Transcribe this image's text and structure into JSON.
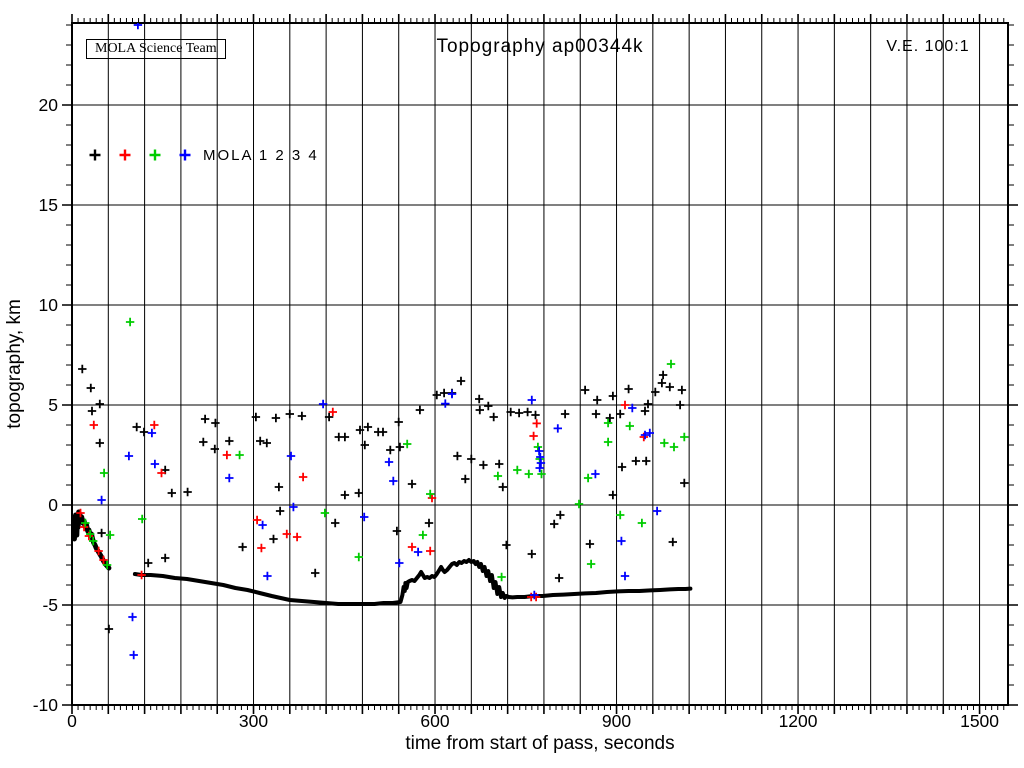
{
  "chart_data": {
    "type": "scatter",
    "title": "Topography ap00344k",
    "box_label": "MOLA Science Team",
    "corner_label": "V.E. 100:1",
    "xlabel": "time from start of pass, seconds",
    "ylabel": "topography, km",
    "xlim": [
      0,
      1547
    ],
    "ylim": [
      -10,
      24.1
    ],
    "x_tick_labels": [
      0,
      300,
      600,
      900,
      1200,
      1500
    ],
    "y_tick_labels": [
      -10,
      -5,
      0,
      5,
      10,
      15,
      20
    ],
    "x_grid_step": 60,
    "x_minor_step": 10,
    "y_grid_step": 5,
    "y_minor_step": 1,
    "grid": true,
    "frame_color": "#000000",
    "legend": {
      "label": "MOLA 1 2 3 4",
      "entries": [
        {
          "name": "MOLA 1",
          "color": "#000000"
        },
        {
          "name": "MOLA 2",
          "color": "#ff0000"
        },
        {
          "name": "MOLA 3",
          "color": "#00cc00"
        },
        {
          "name": "MOLA 4",
          "color": "#0000ff"
        }
      ]
    },
    "track_start": {
      "name": "ground-track-initial-descent",
      "color": "#000000",
      "points": [
        [
          3,
          -1.2
        ],
        [
          4,
          -0.6
        ],
        [
          4,
          -1.7
        ],
        [
          5,
          -1.1
        ],
        [
          6,
          -0.5
        ],
        [
          6,
          -1.4
        ],
        [
          7,
          -0.8
        ],
        [
          8,
          -1.5
        ],
        [
          9,
          -0.55
        ],
        [
          10,
          -1.1
        ],
        [
          11,
          -0.35
        ],
        [
          12,
          -0.8
        ],
        [
          13,
          -0.5
        ],
        [
          14,
          -0.75
        ],
        [
          16,
          -0.6
        ],
        [
          18,
          -0.9
        ],
        [
          20,
          -0.8
        ],
        [
          22,
          -1.1
        ],
        [
          24,
          -1.0
        ],
        [
          26,
          -1.3
        ],
        [
          28,
          -1.25
        ],
        [
          30,
          -1.5
        ],
        [
          32,
          -1.45
        ],
        [
          34,
          -1.7
        ],
        [
          36,
          -1.9
        ],
        [
          38,
          -2.0
        ],
        [
          40,
          -2.15
        ],
        [
          43,
          -2.3
        ],
        [
          46,
          -2.45
        ],
        [
          49,
          -2.6
        ],
        [
          52,
          -2.8
        ],
        [
          55,
          -2.95
        ],
        [
          58,
          -3.05
        ],
        [
          61,
          -3.15
        ]
      ]
    },
    "track": {
      "name": "ground-track-profile",
      "color": "#000000",
      "points": [
        [
          104,
          -3.45
        ],
        [
          115,
          -3.5
        ],
        [
          130,
          -3.5
        ],
        [
          150,
          -3.55
        ],
        [
          170,
          -3.65
        ],
        [
          190,
          -3.7
        ],
        [
          210,
          -3.8
        ],
        [
          230,
          -3.9
        ],
        [
          250,
          -4.0
        ],
        [
          270,
          -4.15
        ],
        [
          290,
          -4.25
        ],
        [
          310,
          -4.4
        ],
        [
          330,
          -4.55
        ],
        [
          345,
          -4.65
        ],
        [
          360,
          -4.75
        ],
        [
          380,
          -4.8
        ],
        [
          400,
          -4.85
        ],
        [
          420,
          -4.9
        ],
        [
          440,
          -4.95
        ],
        [
          460,
          -4.95
        ],
        [
          480,
          -4.95
        ],
        [
          500,
          -4.95
        ],
        [
          515,
          -4.9
        ],
        [
          530,
          -4.9
        ],
        [
          543,
          -4.85
        ],
        [
          546,
          -4.5
        ],
        [
          548,
          -4.1
        ],
        [
          550,
          -4.3
        ],
        [
          551,
          -3.9
        ],
        [
          553,
          -4.15
        ],
        [
          555,
          -3.85
        ],
        [
          558,
          -3.8
        ],
        [
          562,
          -3.75
        ],
        [
          566,
          -3.8
        ],
        [
          570,
          -3.65
        ],
        [
          574,
          -3.5
        ],
        [
          577,
          -3.35
        ],
        [
          580,
          -3.5
        ],
        [
          583,
          -3.65
        ],
        [
          587,
          -3.6
        ],
        [
          591,
          -3.65
        ],
        [
          595,
          -3.55
        ],
        [
          599,
          -3.6
        ],
        [
          603,
          -3.45
        ],
        [
          607,
          -3.25
        ],
        [
          610,
          -3.1
        ],
        [
          613,
          -3.25
        ],
        [
          616,
          -3.35
        ],
        [
          620,
          -3.25
        ],
        [
          624,
          -3.1
        ],
        [
          628,
          -2.95
        ],
        [
          632,
          -2.9
        ],
        [
          636,
          -3.0
        ],
        [
          640,
          -2.85
        ],
        [
          644,
          -2.9
        ],
        [
          648,
          -2.8
        ],
        [
          652,
          -2.85
        ],
        [
          656,
          -2.75
        ],
        [
          660,
          -2.85
        ],
        [
          664,
          -2.8
        ],
        [
          667,
          -2.95
        ],
        [
          670,
          -2.85
        ],
        [
          673,
          -3.1
        ],
        [
          676,
          -2.95
        ],
        [
          679,
          -3.3
        ],
        [
          682,
          -3.1
        ],
        [
          685,
          -3.55
        ],
        [
          688,
          -3.3
        ],
        [
          691,
          -3.8
        ],
        [
          694,
          -3.5
        ],
        [
          697,
          -4.15
        ],
        [
          700,
          -3.85
        ],
        [
          703,
          -4.45
        ],
        [
          706,
          -4.1
        ],
        [
          709,
          -4.6
        ],
        [
          712,
          -4.4
        ],
        [
          715,
          -4.65
        ],
        [
          718,
          -4.55
        ],
        [
          722,
          -4.6
        ],
        [
          728,
          -4.62
        ],
        [
          736,
          -4.6
        ],
        [
          748,
          -4.6
        ],
        [
          762,
          -4.55
        ],
        [
          778,
          -4.55
        ],
        [
          795,
          -4.5
        ],
        [
          812,
          -4.48
        ],
        [
          830,
          -4.45
        ],
        [
          848,
          -4.42
        ],
        [
          866,
          -4.4
        ],
        [
          884,
          -4.35
        ],
        [
          902,
          -4.32
        ],
        [
          920,
          -4.3
        ],
        [
          938,
          -4.3
        ],
        [
          956,
          -4.27
        ],
        [
          972,
          -4.25
        ],
        [
          988,
          -4.22
        ],
        [
          1002,
          -4.2
        ],
        [
          1014,
          -4.2
        ],
        [
          1022,
          -4.18
        ]
      ]
    },
    "series": [
      {
        "name": "MOLA 1",
        "color": "#000000",
        "points": [
          [
            17,
            6.8
          ],
          [
            31,
            5.85
          ],
          [
            33,
            4.7
          ],
          [
            46,
            5.05
          ],
          [
            46,
            3.1
          ],
          [
            49,
            -1.4
          ],
          [
            61,
            -6.2
          ],
          [
            107,
            3.9
          ],
          [
            119,
            3.65
          ],
          [
            126,
            -2.9
          ],
          [
            154,
            1.75
          ],
          [
            154,
            -2.65
          ],
          [
            165,
            0.6
          ],
          [
            191,
            0.65
          ],
          [
            217,
            3.15
          ],
          [
            220,
            4.3
          ],
          [
            236,
            2.8
          ],
          [
            237,
            4.1
          ],
          [
            260,
            3.2
          ],
          [
            282,
            -2.1
          ],
          [
            304,
            4.4
          ],
          [
            311,
            3.2
          ],
          [
            322,
            3.1
          ],
          [
            333,
            -1.7
          ],
          [
            337,
            4.35
          ],
          [
            342,
            0.9
          ],
          [
            344,
            -0.3
          ],
          [
            360,
            4.55
          ],
          [
            380,
            4.45
          ],
          [
            402,
            -3.4
          ],
          [
            425,
            4.4
          ],
          [
            435,
            -0.9
          ],
          [
            441,
            3.4
          ],
          [
            451,
            3.4
          ],
          [
            451,
            0.5
          ],
          [
            474,
            0.6
          ],
          [
            476,
            3.75
          ],
          [
            484,
            3.0
          ],
          [
            489,
            3.9
          ],
          [
            506,
            3.65
          ],
          [
            514,
            3.65
          ],
          [
            526,
            2.75
          ],
          [
            537,
            -1.3
          ],
          [
            540,
            4.15
          ],
          [
            542,
            2.9
          ],
          [
            562,
            1.05
          ],
          [
            575,
            4.75
          ],
          [
            590,
            -0.9
          ],
          [
            603,
            5.5
          ],
          [
            615,
            5.6
          ],
          [
            628,
            5.6
          ],
          [
            637,
            2.45
          ],
          [
            643,
            6.2
          ],
          [
            650,
            1.3
          ],
          [
            660,
            2.3
          ],
          [
            673,
            5.3
          ],
          [
            674,
            4.75
          ],
          [
            680,
            2.0
          ],
          [
            688,
            4.95
          ],
          [
            697,
            4.4
          ],
          [
            706,
            2.05
          ],
          [
            712,
            0.9
          ],
          [
            718,
            -2.0
          ],
          [
            725,
            4.65
          ],
          [
            739,
            4.6
          ],
          [
            753,
            4.65
          ],
          [
            760,
            -2.45
          ],
          [
            766,
            4.5
          ],
          [
            797,
            -0.95
          ],
          [
            805,
            -3.65
          ],
          [
            807,
            -0.5
          ],
          [
            815,
            4.55
          ],
          [
            848,
            5.75
          ],
          [
            856,
            -1.95
          ],
          [
            866,
            4.55
          ],
          [
            868,
            5.25
          ],
          [
            889,
            4.35
          ],
          [
            894,
            5.45
          ],
          [
            894,
            0.5
          ],
          [
            906,
            4.55
          ],
          [
            909,
            1.9
          ],
          [
            920,
            5.8
          ],
          [
            932,
            2.2
          ],
          [
            947,
            4.7
          ],
          [
            949,
            2.2
          ],
          [
            952,
            5.05
          ],
          [
            964,
            5.65
          ],
          [
            975,
            6.1
          ],
          [
            977,
            6.5
          ],
          [
            988,
            5.9
          ],
          [
            993,
            -1.85
          ],
          [
            1005,
            5.0
          ],
          [
            1008,
            5.75
          ],
          [
            1012,
            1.1
          ]
        ]
      },
      {
        "name": "MOLA 2",
        "color": "#ff0000",
        "points": [
          [
            14,
            -0.4
          ],
          [
            20,
            -1.1
          ],
          [
            28,
            -1.55
          ],
          [
            36,
            4.0
          ],
          [
            44,
            -2.3
          ],
          [
            52,
            -2.75
          ],
          [
            115,
            -3.5
          ],
          [
            136,
            4.0
          ],
          [
            148,
            1.6
          ],
          [
            256,
            2.5
          ],
          [
            306,
            -0.75
          ],
          [
            313,
            -2.15
          ],
          [
            355,
            -1.45
          ],
          [
            372,
            -1.6
          ],
          [
            382,
            1.4
          ],
          [
            431,
            4.65
          ],
          [
            562,
            -2.1
          ],
          [
            592,
            -2.3
          ],
          [
            595,
            0.35
          ],
          [
            759,
            -4.6
          ],
          [
            763,
            3.45
          ],
          [
            767,
            -4.6
          ],
          [
            768,
            4.08
          ],
          [
            914,
            5.0
          ],
          [
            945,
            3.4
          ]
        ]
      },
      {
        "name": "MOLA 3",
        "color": "#00cc00",
        "points": [
          [
            22,
            -0.9
          ],
          [
            30,
            -1.45
          ],
          [
            35,
            -1.8
          ],
          [
            53,
            1.6
          ],
          [
            58,
            -3.0
          ],
          [
            63,
            -1.5
          ],
          [
            96,
            9.15
          ],
          [
            116,
            -0.7
          ],
          [
            277,
            2.5
          ],
          [
            418,
            -0.4
          ],
          [
            474,
            -2.6
          ],
          [
            554,
            3.05
          ],
          [
            580,
            -1.5
          ],
          [
            592,
            0.55
          ],
          [
            704,
            1.45
          ],
          [
            710,
            -3.6
          ],
          [
            736,
            1.75
          ],
          [
            755,
            1.55
          ],
          [
            770,
            2.9
          ],
          [
            773,
            2.3
          ],
          [
            776,
            1.55
          ],
          [
            838,
            0.05
          ],
          [
            853,
            1.35
          ],
          [
            858,
            -2.95
          ],
          [
            886,
            4.1
          ],
          [
            886,
            3.15
          ],
          [
            906,
            -0.5
          ],
          [
            922,
            3.95
          ],
          [
            942,
            -0.9
          ],
          [
            979,
            3.1
          ],
          [
            990,
            7.05
          ],
          [
            995,
            2.9
          ],
          [
            1012,
            3.4
          ]
        ]
      },
      {
        "name": "MOLA 4",
        "color": "#0000ff",
        "points": [
          [
            49,
            0.25
          ],
          [
            94,
            2.45
          ],
          [
            100,
            -5.6
          ],
          [
            102,
            -7.5
          ],
          [
            109,
            24.0
          ],
          [
            132,
            3.6
          ],
          [
            137,
            2.05
          ],
          [
            260,
            1.35
          ],
          [
            315,
            -1.0
          ],
          [
            323,
            -3.55
          ],
          [
            362,
            2.45
          ],
          [
            366,
            -0.1
          ],
          [
            415,
            5.05
          ],
          [
            483,
            -0.6
          ],
          [
            524,
            2.15
          ],
          [
            531,
            1.2
          ],
          [
            541,
            -2.9
          ],
          [
            572,
            -2.35
          ],
          [
            617,
            5.07
          ],
          [
            628,
            5.55
          ],
          [
            760,
            5.25
          ],
          [
            764,
            -4.5
          ],
          [
            772,
            2.7
          ],
          [
            773,
            1.85
          ],
          [
            774,
            2.4
          ],
          [
            775,
            2.1
          ],
          [
            803,
            3.83
          ],
          [
            865,
            1.55
          ],
          [
            908,
            -1.8
          ],
          [
            914,
            -3.55
          ],
          [
            926,
            4.85
          ],
          [
            947,
            3.5
          ],
          [
            955,
            3.6
          ],
          [
            967,
            -0.3
          ]
        ]
      }
    ]
  }
}
